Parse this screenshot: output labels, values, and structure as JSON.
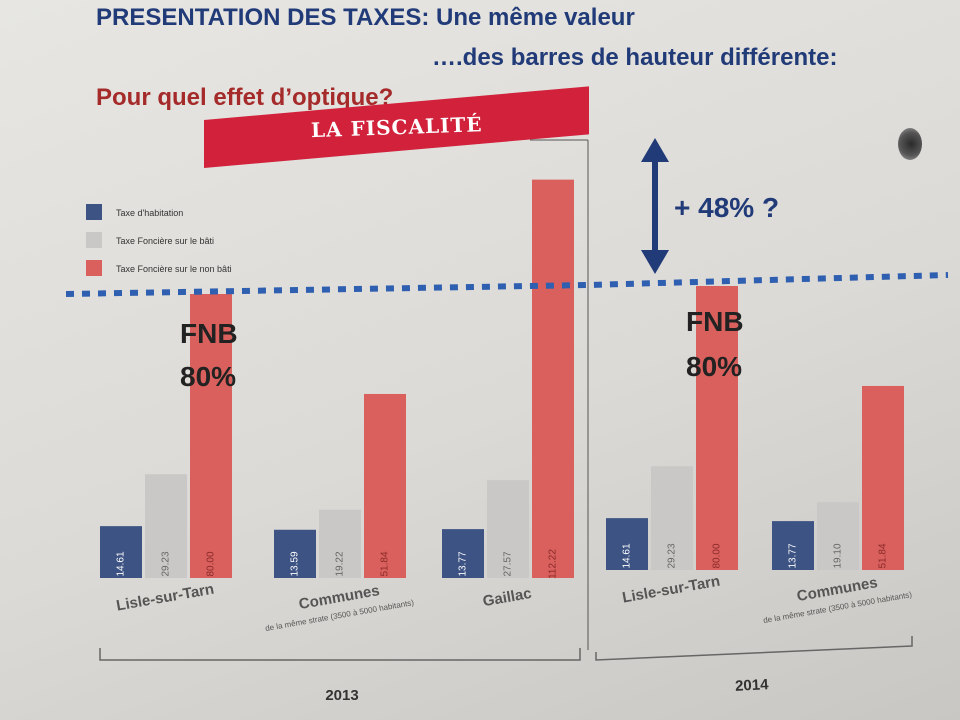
{
  "header": {
    "line1": "PRESENTATION DES TAXES: Une même valeur",
    "line2": "….des barres de hauteur différente:",
    "line3": "Pour quel effet d’optique?"
  },
  "banner": {
    "text": "LA FISCALITÉ"
  },
  "annotations": {
    "fnb_label": "FNB",
    "fnb_left_value": "80%",
    "fnb_right_value": "80%",
    "increase_text": "+ 48% ?"
  },
  "colors": {
    "habitation": "#3d5383",
    "fonciere_bati": "#c9c8c6",
    "fonciere_non_bati": "#d9605c",
    "dotted_line": "#2f5fb0",
    "arrow": "#213a78"
  },
  "chart_data": [
    {
      "type": "bar",
      "title": "LA FISCALITÉ",
      "year": "2013",
      "categories": [
        "Lisle-sur-Tarn",
        "Communes",
        "Gaillac"
      ],
      "category_subtitles": [
        "",
        "de la même strate (3500 à 5000 habitants)",
        ""
      ],
      "series": [
        {
          "name": "Taxe d'habitation",
          "values": [
            14.61,
            13.59,
            13.77
          ],
          "labels": [
            "14.61",
            "13.59",
            "13.77"
          ]
        },
        {
          "name": "Taxe Foncière sur le bâti",
          "values": [
            29.23,
            19.22,
            27.57
          ],
          "labels": [
            "29.23",
            "19.22",
            "27.57"
          ]
        },
        {
          "name": "Taxe Foncière sur le non bâti",
          "values": [
            80.0,
            51.84,
            112.22
          ],
          "labels": [
            "80.00",
            "51.84",
            "112.22"
          ]
        }
      ],
      "legend_position": "top-left"
    },
    {
      "type": "bar",
      "year": "2014",
      "categories": [
        "Lisle-sur-Tarn",
        "Communes"
      ],
      "category_subtitles": [
        "",
        "de la même strate (3500 à 5000 habitants)"
      ],
      "series": [
        {
          "name": "Taxe d'habitation",
          "values": [
            14.61,
            13.77
          ],
          "labels": [
            "14.61",
            "13.77"
          ]
        },
        {
          "name": "Taxe Foncière sur le bâti",
          "values": [
            29.23,
            19.1
          ],
          "labels": [
            "29.23",
            "19.10"
          ]
        },
        {
          "name": "Taxe Foncière sur le non bâti",
          "values": [
            80.0,
            51.84
          ],
          "labels": [
            "80.00",
            "51.84"
          ]
        }
      ]
    }
  ]
}
